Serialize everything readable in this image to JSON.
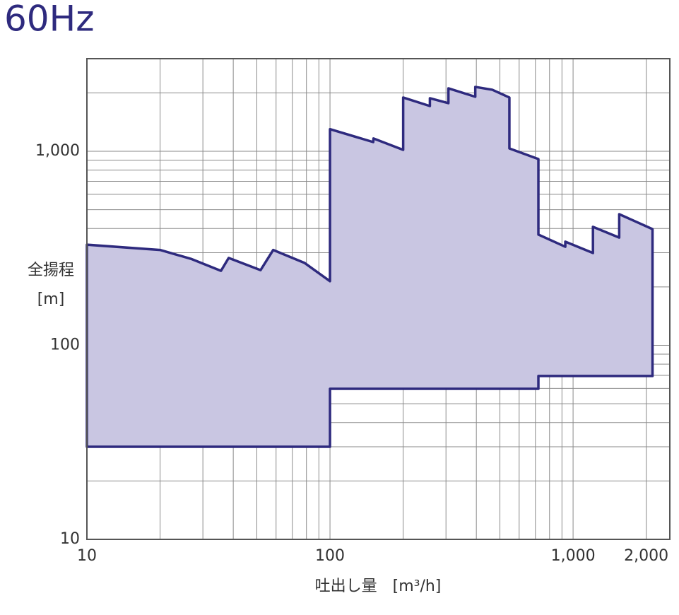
{
  "chart_data": {
    "type": "area",
    "title": "60Hz",
    "xlabel": "吐出し量　[m³/h]",
    "ylabel": [
      "全揚程",
      "[m]"
    ],
    "xlog": true,
    "ylog": true,
    "grid": true,
    "xlim": [
      10,
      2500
    ],
    "ylim": [
      10,
      3000
    ],
    "xticks": [
      10,
      100,
      {
        "value": 1000,
        "label": "1,000"
      },
      {
        "value": 2000,
        "label": "2,000"
      }
    ],
    "yticks": [
      10,
      100,
      {
        "value": 1000,
        "label": "1,000"
      }
    ],
    "xminor": [
      20,
      30,
      40,
      50,
      60,
      70,
      80,
      90,
      200,
      300,
      400,
      500,
      600,
      700,
      800,
      900
    ],
    "yminor": [
      20,
      30,
      40,
      50,
      60,
      70,
      80,
      90,
      200,
      300,
      400,
      500,
      600,
      700,
      800,
      900,
      2000
    ],
    "series": [
      {
        "color": "#2e2a7e",
        "fill": "#c9c6e2",
        "x": [
          10,
          20,
          26.8,
          35.6,
          38.3,
          51.8,
          58.4,
          78.5,
          100,
          100,
          150.6,
          151,
          200,
          200,
          257.6,
          257.6,
          307,
          307,
          396,
          396,
          465,
          547,
          547,
          720,
          720,
          929,
          929,
          1207,
          1207,
          1548,
          1548,
          2122,
          2122,
          720,
          720,
          100,
          100,
          10
        ],
        "values": [
          330,
          310,
          279,
          242,
          282,
          244,
          310,
          266,
          214,
          1300,
          1115,
          1164,
          1017,
          1892,
          1710,
          1876,
          1770,
          2110,
          1909,
          2146,
          2075,
          1892,
          1034,
          912,
          372,
          322,
          342,
          299,
          408,
          359,
          474,
          397,
          69.5,
          69.5,
          59.7,
          59.7,
          30,
          30
        ]
      }
    ]
  }
}
